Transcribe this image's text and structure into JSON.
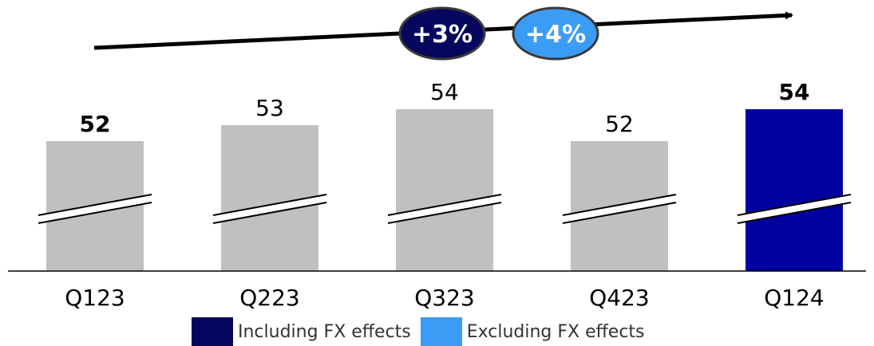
{
  "chart_data": {
    "type": "bar",
    "categories": [
      "Q123",
      "Q223",
      "Q323",
      "Q423",
      "Q124"
    ],
    "values": [
      52,
      53,
      54,
      52,
      54
    ],
    "value_labels": [
      "52",
      "53",
      "54",
      "52",
      "54"
    ],
    "bold_labels": [
      true,
      false,
      false,
      false,
      true
    ],
    "bar_colors": [
      "#c0c0c0",
      "#c0c0c0",
      "#c0c0c0",
      "#c0c0c0",
      "#0000a0"
    ],
    "axis_break": true,
    "trend_badges": [
      {
        "label": "+3%",
        "color": "#06065e"
      },
      {
        "label": "+4%",
        "color": "#3b9cf5"
      }
    ],
    "title": "",
    "xlabel": "",
    "ylabel": ""
  },
  "legend": [
    {
      "label": "Including FX effects",
      "color": "#06065e"
    },
    {
      "label": "Excluding FX effects",
      "color": "#3b9cf5"
    }
  ]
}
